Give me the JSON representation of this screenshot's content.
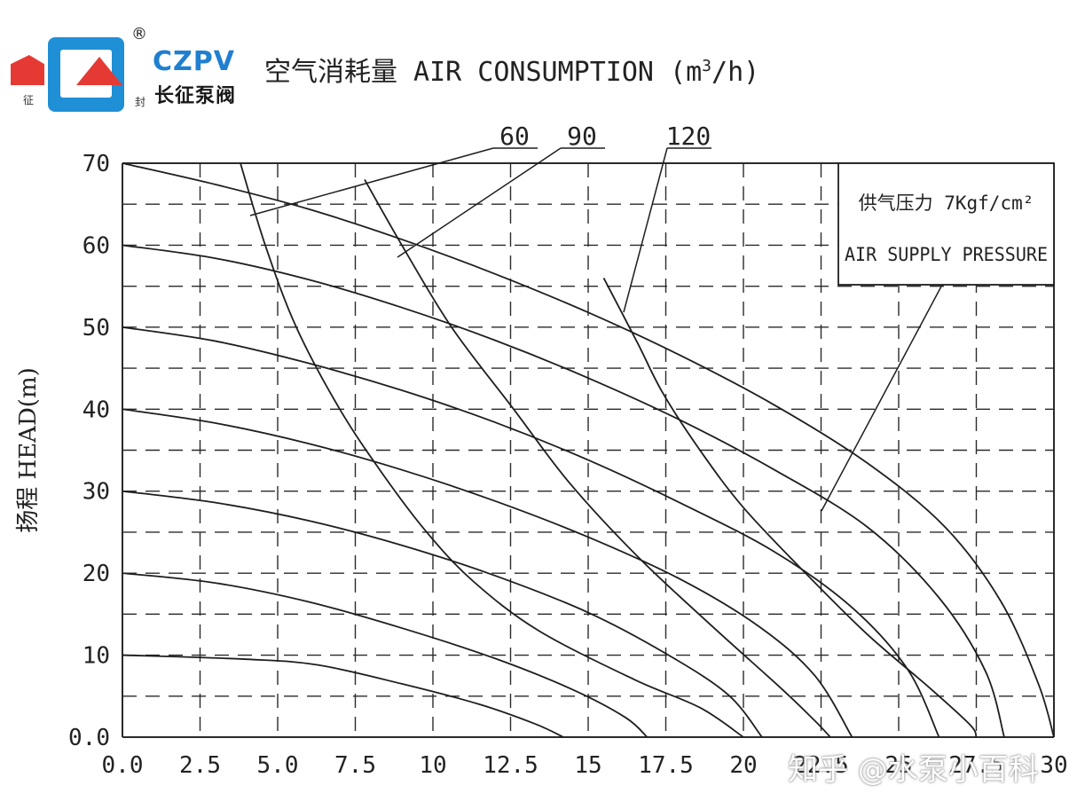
{
  "logo": {
    "brand_en": "CZPV",
    "brand_cn": "长征泵阀",
    "registered": "®",
    "small_left": "征",
    "small_right": "封"
  },
  "header": {
    "title": "空气消耗量 AIR CONSUMPTION (m",
    "title_sup": "3",
    "title_end": "/h)"
  },
  "watermark": "知乎 @水泵小百科",
  "colors": {
    "line": "#1e1e1e",
    "grid": "#2a2a2a",
    "brand_blue": "#1f8fd6",
    "brand_red": "#e53a33"
  },
  "chart_data": {
    "type": "line",
    "title": "空气消耗量 AIR CONSUMPTION (m3/h)",
    "xlabel": "",
    "ylabel": "扬程 HEAD(m)",
    "xlim": [
      0,
      30
    ],
    "ylim": [
      0,
      70
    ],
    "x_ticks": [
      "0.0",
      "2.5",
      "5.0",
      "7.5",
      "10",
      "12.5",
      "15",
      "17.5",
      "20",
      "22.5",
      "25",
      "27.5",
      "30"
    ],
    "y_ticks": [
      "0.0",
      "10",
      "20",
      "30",
      "40",
      "50",
      "60",
      "70"
    ],
    "grid": true,
    "legend_box": {
      "line1": "供气压力 7Kgf/cm²",
      "line2": "AIR SUPPLY PRESSURE"
    },
    "air_labels": [
      "60",
      "90",
      "120"
    ],
    "series": [
      {
        "points": [
          [
            0,
            10
          ],
          [
            4,
            9.5
          ],
          [
            6.3,
            8.8
          ],
          [
            9,
            6.5
          ],
          [
            11.5,
            4
          ],
          [
            13.3,
            1.6
          ],
          [
            14.2,
            0
          ]
        ]
      },
      {
        "points": [
          [
            0,
            20
          ],
          [
            3,
            18.8
          ],
          [
            6,
            16.5
          ],
          [
            9,
            13.3
          ],
          [
            12,
            9.6
          ],
          [
            14.5,
            5.8
          ],
          [
            16.2,
            2.4
          ],
          [
            16.9,
            0
          ]
        ]
      },
      {
        "points": [
          [
            0,
            30
          ],
          [
            3,
            28.6
          ],
          [
            6,
            26.4
          ],
          [
            9,
            23.4
          ],
          [
            12,
            19.7
          ],
          [
            15,
            15.2
          ],
          [
            17.5,
            10.2
          ],
          [
            19.5,
            5.2
          ],
          [
            20.6,
            0
          ]
        ]
      },
      {
        "points": [
          [
            0,
            40
          ],
          [
            3,
            38.3
          ],
          [
            6,
            35.8
          ],
          [
            9,
            32.6
          ],
          [
            12,
            28.8
          ],
          [
            15,
            24.4
          ],
          [
            18,
            19.2
          ],
          [
            20.5,
            13.5
          ],
          [
            22.3,
            7.5
          ],
          [
            23.5,
            0
          ]
        ]
      },
      {
        "points": [
          [
            0,
            50
          ],
          [
            3,
            48.3
          ],
          [
            6,
            45.6
          ],
          [
            9,
            42.3
          ],
          [
            12,
            38.4
          ],
          [
            15,
            33.8
          ],
          [
            18,
            28.5
          ],
          [
            21,
            22.6
          ],
          [
            23.5,
            15.8
          ],
          [
            25.3,
            8.2
          ],
          [
            26.3,
            0
          ]
        ]
      },
      {
        "points": [
          [
            0,
            60
          ],
          [
            3,
            58.4
          ],
          [
            6,
            55.8
          ],
          [
            9,
            52.4
          ],
          [
            12,
            48.4
          ],
          [
            15,
            43.8
          ],
          [
            18,
            38.6
          ],
          [
            21,
            32.6
          ],
          [
            24,
            25.6
          ],
          [
            26.3,
            17
          ],
          [
            27.8,
            8
          ],
          [
            28.4,
            0
          ]
        ]
      },
      {
        "points": [
          [
            0,
            70
          ],
          [
            3,
            67.4
          ],
          [
            6,
            64.4
          ],
          [
            9,
            60.7
          ],
          [
            12,
            56.5
          ],
          [
            15,
            51.8
          ],
          [
            18,
            46.5
          ],
          [
            21,
            40.5
          ],
          [
            24,
            33.4
          ],
          [
            26.5,
            25.6
          ],
          [
            28.3,
            16.5
          ],
          [
            29.5,
            6.5
          ],
          [
            30,
            0
          ]
        ]
      }
    ],
    "air_curves": [
      {
        "name": "60",
        "points": [
          [
            3.8,
            70
          ],
          [
            4.6,
            60
          ],
          [
            5.6,
            50
          ],
          [
            7,
            40
          ],
          [
            8.4,
            32
          ],
          [
            9.8,
            25
          ],
          [
            11.3,
            19
          ],
          [
            13.4,
            13
          ],
          [
            16.5,
            7
          ],
          [
            18.6,
            3.6
          ],
          [
            20,
            0
          ]
        ]
      },
      {
        "points": [
          [
            7.8,
            68
          ],
          [
            9,
            60
          ],
          [
            10.6,
            50
          ],
          [
            12.6,
            40
          ],
          [
            14.4,
            31
          ],
          [
            16.6,
            22
          ],
          [
            19,
            13.5
          ],
          [
            21.2,
            6
          ],
          [
            22.3,
            2
          ],
          [
            22.8,
            0
          ]
        ]
      },
      {
        "name": "120",
        "points": [
          [
            15.5,
            56
          ],
          [
            16.6,
            48
          ],
          [
            17.4,
            42
          ],
          [
            18.6,
            35
          ],
          [
            20,
            28
          ],
          [
            22,
            20
          ],
          [
            24,
            12.5
          ],
          [
            26,
            6
          ],
          [
            27.3,
            1.5
          ],
          [
            27.5,
            0
          ]
        ]
      }
    ]
  }
}
